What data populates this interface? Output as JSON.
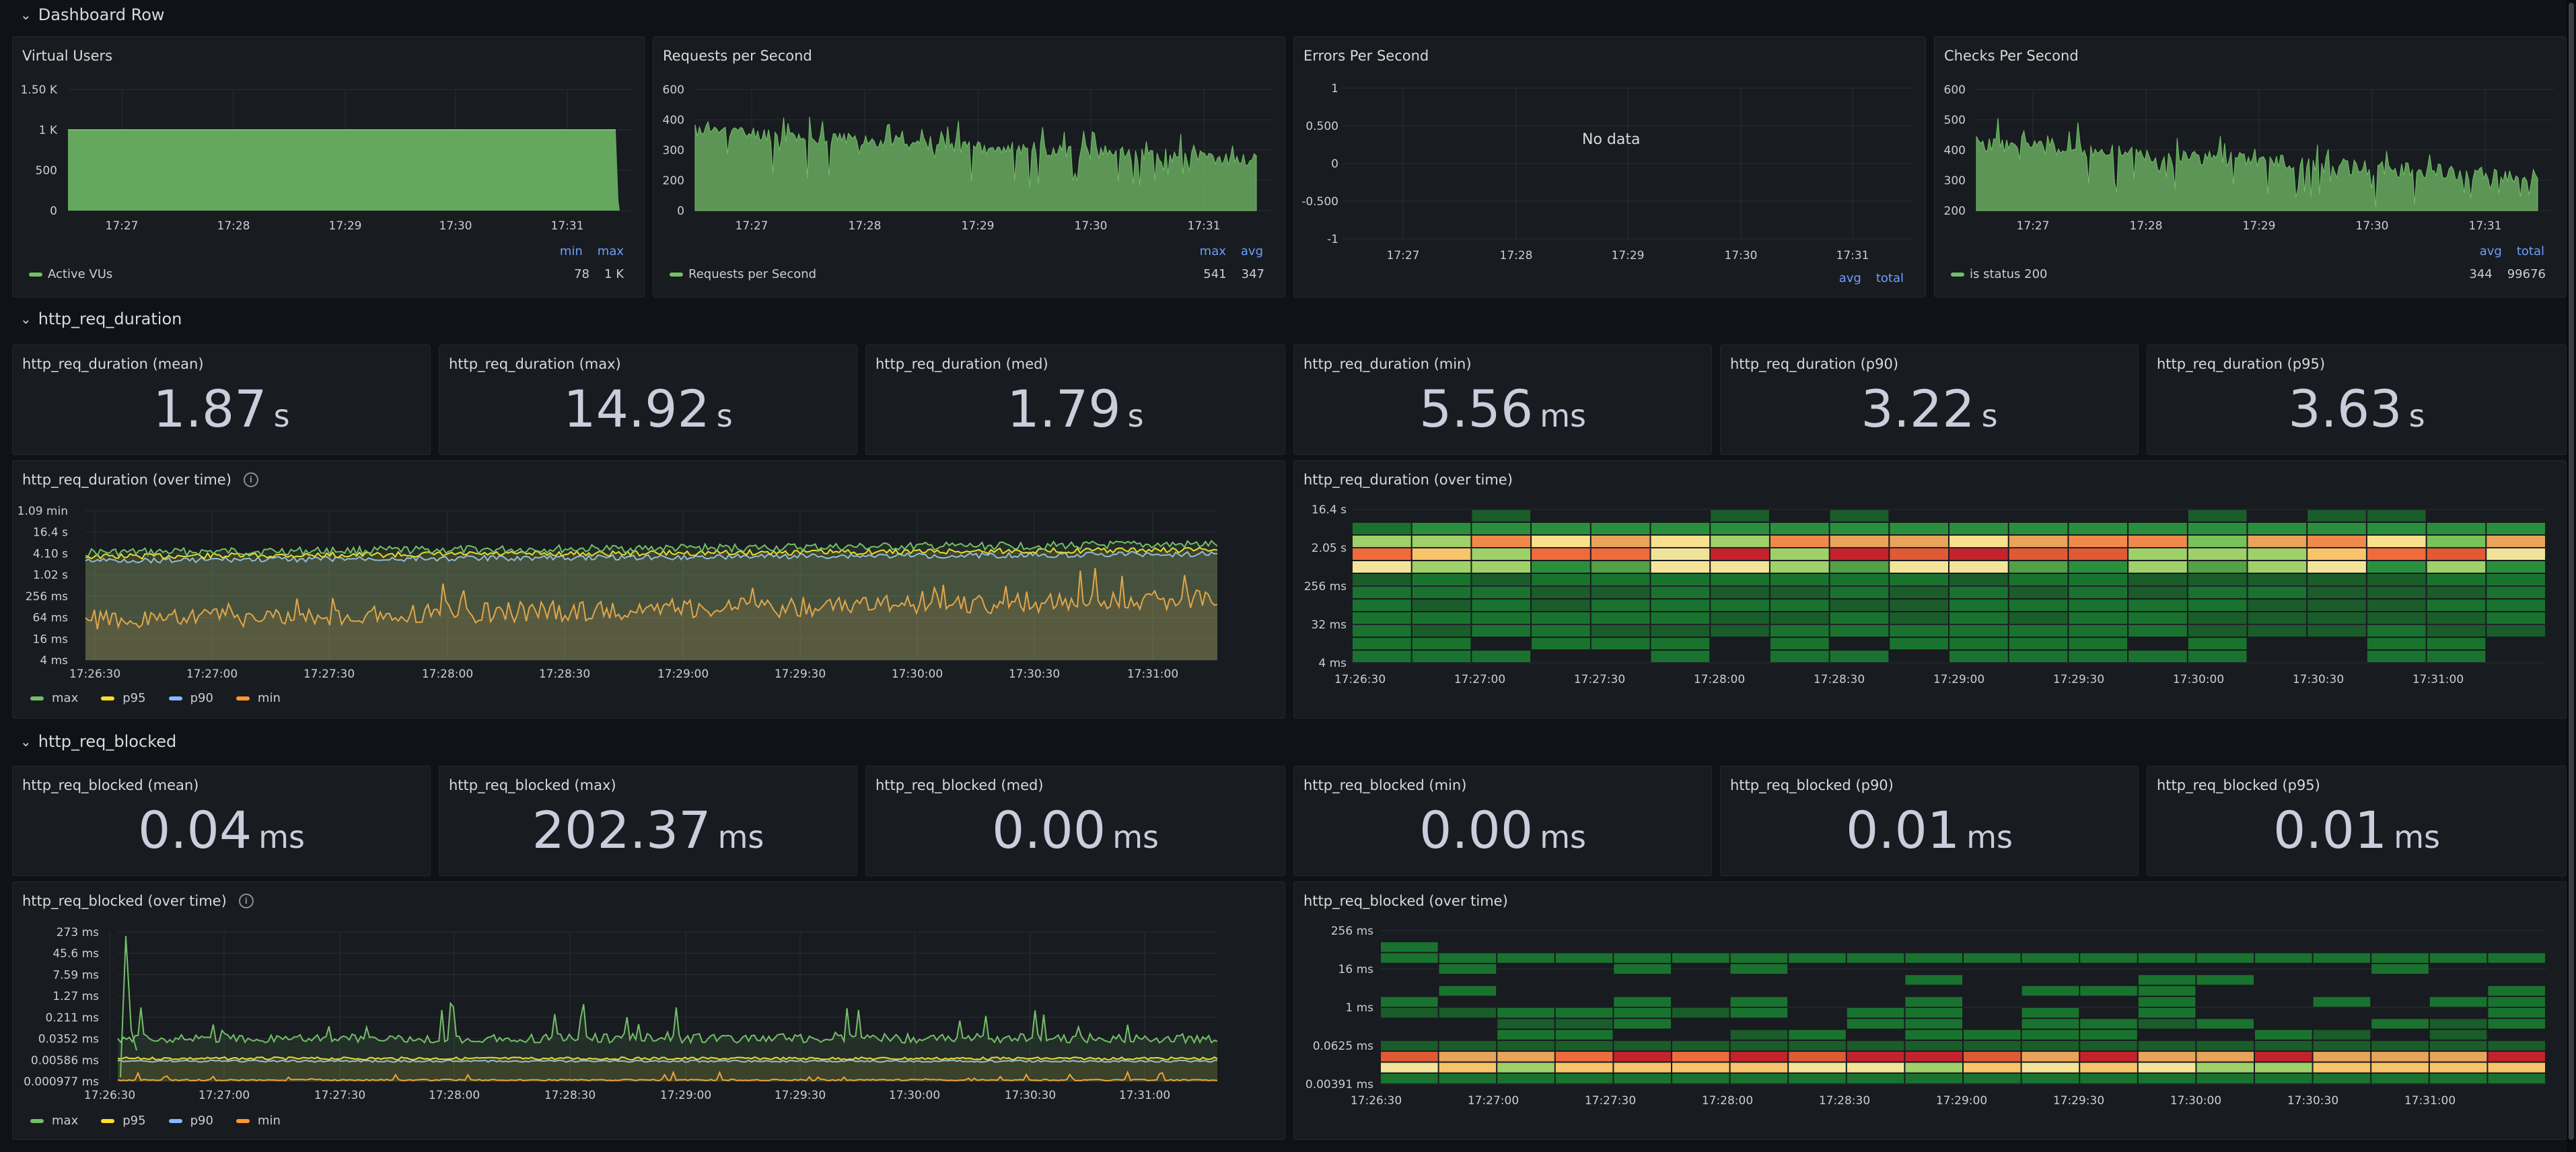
{
  "rows": {
    "dashboard": "Dashboard Row",
    "duration": "http_req_duration",
    "blocked": "http_req_blocked"
  },
  "colors": {
    "green": "#73bf69",
    "yellow": "#fade2a",
    "blue": "#8ab8ff",
    "orange": "#ff9830",
    "link": "#6e9fff"
  },
  "time_ticks": [
    "17:27",
    "17:28",
    "17:29",
    "17:30",
    "17:31"
  ],
  "time_ticks_long": [
    "17:26:30",
    "17:27:00",
    "17:27:30",
    "17:28:00",
    "17:28:30",
    "17:29:00",
    "17:29:30",
    "17:30:00",
    "17:30:30",
    "17:31:00"
  ],
  "panels": {
    "vus": {
      "title": "Virtual Users",
      "y_ticks": [
        "1.50 K",
        "1 K",
        "500",
        "0"
      ],
      "legend": "Active VUs",
      "stat_heads": [
        "min",
        "max"
      ],
      "stat_vals": [
        "78",
        "1 K"
      ]
    },
    "rps": {
      "title": "Requests per Second",
      "y_ticks": [
        "600",
        "400",
        "300",
        "200",
        "0"
      ],
      "legend": "Requests per Second",
      "stat_heads": [
        "max",
        "avg"
      ],
      "stat_vals": [
        "541",
        "347"
      ]
    },
    "eps": {
      "title": "Errors Per Second",
      "y_ticks": [
        "1",
        "0.500",
        "0",
        "-0.500",
        "-1"
      ],
      "no_data": "No data",
      "stat_heads": [
        "avg",
        "total"
      ]
    },
    "cps": {
      "title": "Checks Per Second",
      "y_ticks": [
        "600",
        "500",
        "400",
        "300",
        "200"
      ],
      "legend": "is status 200",
      "stat_heads": [
        "avg",
        "total"
      ],
      "stat_vals": [
        "344",
        "99676"
      ]
    }
  },
  "duration_stats": [
    {
      "title": "http_req_duration (mean)",
      "value": "1.87",
      "unit": "s"
    },
    {
      "title": "http_req_duration (max)",
      "value": "14.92",
      "unit": "s"
    },
    {
      "title": "http_req_duration (med)",
      "value": "1.79",
      "unit": "s"
    },
    {
      "title": "http_req_duration (min)",
      "value": "5.56",
      "unit": "ms"
    },
    {
      "title": "http_req_duration (p90)",
      "value": "3.22",
      "unit": "s"
    },
    {
      "title": "http_req_duration (p95)",
      "value": "3.63",
      "unit": "s"
    }
  ],
  "duration_overtime": {
    "title": "http_req_duration (over time)",
    "y_ticks": [
      "1.09 min",
      "16.4 s",
      "4.10 s",
      "1.02 s",
      "256 ms",
      "64 ms",
      "16 ms",
      "4 ms"
    ],
    "legend": [
      "max",
      "p95",
      "p90",
      "min"
    ]
  },
  "duration_heatmap": {
    "title": "http_req_duration (over time)",
    "y_ticks": [
      "16.4 s",
      "2.05 s",
      "256 ms",
      "32 ms",
      "4 ms"
    ]
  },
  "blocked_stats": [
    {
      "title": "http_req_blocked (mean)",
      "value": "0.04",
      "unit": "ms"
    },
    {
      "title": "http_req_blocked (max)",
      "value": "202.37",
      "unit": "ms"
    },
    {
      "title": "http_req_blocked (med)",
      "value": "0.00",
      "unit": "ms"
    },
    {
      "title": "http_req_blocked (min)",
      "value": "0.00",
      "unit": "ms"
    },
    {
      "title": "http_req_blocked (p90)",
      "value": "0.01",
      "unit": "ms"
    },
    {
      "title": "http_req_blocked (p95)",
      "value": "0.01",
      "unit": "ms"
    }
  ],
  "blocked_overtime": {
    "title": "http_req_blocked (over time)",
    "y_ticks": [
      "273 ms",
      "45.6 ms",
      "7.59 ms",
      "1.27 ms",
      "0.211 ms",
      "0.0352 ms",
      "0.00586 ms",
      "0.000977 ms"
    ],
    "legend": [
      "max",
      "p95",
      "p90",
      "min"
    ]
  },
  "blocked_heatmap": {
    "title": "http_req_blocked (over time)",
    "y_ticks": [
      "256 ms",
      "16 ms",
      "1 ms",
      "0.0625 ms",
      "0.00391 ms"
    ]
  }
}
